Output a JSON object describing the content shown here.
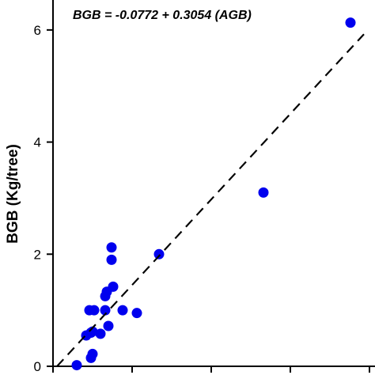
{
  "chart_data": {
    "type": "scatter",
    "title": "",
    "annotation": "BGB = -0.0772 + 0.3054 (AGB)",
    "ylabel": "BGB (Kg/tree)",
    "xlabel": "",
    "ylim": [
      0,
      7
    ],
    "xlim": [
      0,
      20
    ],
    "yticks": [
      0,
      2,
      4,
      6
    ],
    "xticks": [
      0,
      5,
      10,
      15,
      20
    ],
    "x_tick_labels_visible": false,
    "legend": "none",
    "grid": false,
    "marker_color": "#0000ee",
    "line_color": "#000000",
    "regression": {
      "intercept": -0.0772,
      "slope": 0.3054,
      "style": "dashed"
    },
    "points": [
      {
        "x": 1.5,
        "y": 0.02
      },
      {
        "x": 2.1,
        "y": 0.55
      },
      {
        "x": 2.3,
        "y": 1.0
      },
      {
        "x": 2.4,
        "y": 0.6
      },
      {
        "x": 2.4,
        "y": 0.15
      },
      {
        "x": 2.5,
        "y": 0.22
      },
      {
        "x": 2.5,
        "y": 0.62
      },
      {
        "x": 2.6,
        "y": 1.0
      },
      {
        "x": 3.0,
        "y": 0.58
      },
      {
        "x": 3.3,
        "y": 1.0
      },
      {
        "x": 3.3,
        "y": 1.25
      },
      {
        "x": 3.4,
        "y": 1.33
      },
      {
        "x": 3.5,
        "y": 0.72
      },
      {
        "x": 3.7,
        "y": 2.12
      },
      {
        "x": 3.7,
        "y": 1.9
      },
      {
        "x": 3.8,
        "y": 1.42
      },
      {
        "x": 4.4,
        "y": 1.0
      },
      {
        "x": 5.3,
        "y": 0.95
      },
      {
        "x": 6.7,
        "y": 2.0
      },
      {
        "x": 13.3,
        "y": 3.1
      },
      {
        "x": 18.8,
        "y": 6.13
      }
    ]
  }
}
